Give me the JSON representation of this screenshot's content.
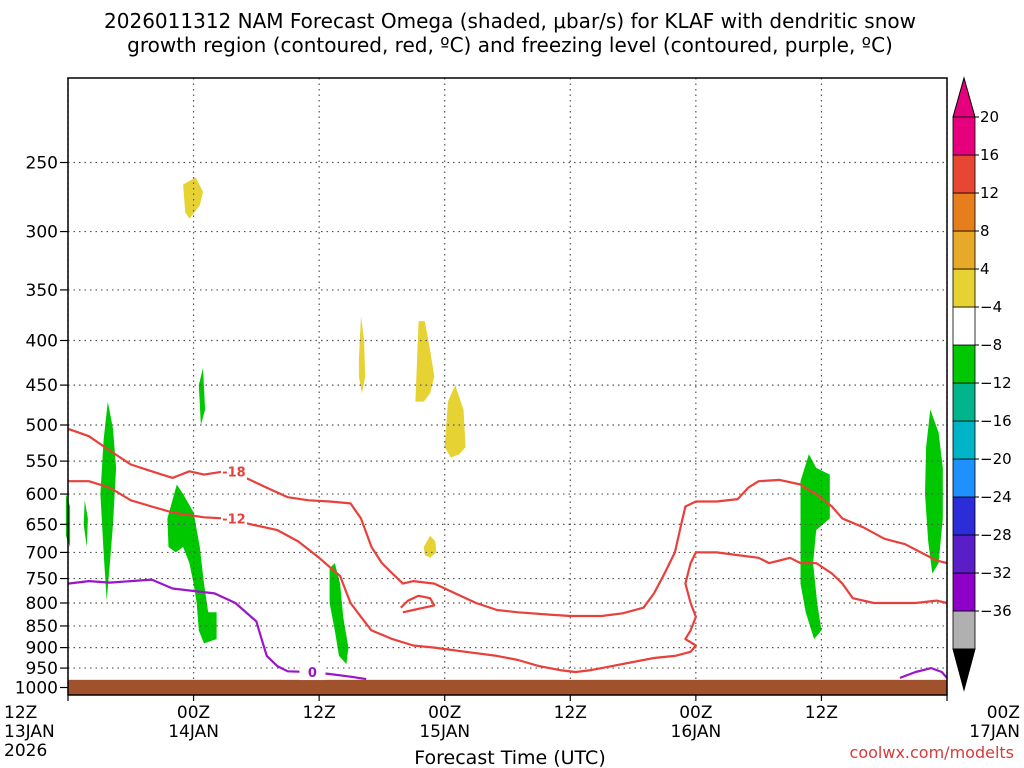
{
  "chart_data": {
    "type": "heatmap",
    "title_line1": "2026011312 NAM Forecast Omega (shaded, μbar/s) for KLAF with dendritic snow",
    "title_line2": "growth region (contoured, red, ºC) and freezing level (contoured, purple, ºC)",
    "xlabel": "Forecast Time (UTC)",
    "credit": "coolwx.com/modelts",
    "x_range_hours": [
      0,
      84
    ],
    "y_range_hpa": [
      200,
      1020
    ],
    "y_scale": "log",
    "grid": "dotted",
    "x_ticks": [
      {
        "h": 0,
        "line1": "12Z",
        "line2": "13JAN",
        "line3": "2026"
      },
      {
        "h": 12,
        "line1": "00Z",
        "line2": "14JAN",
        "line3": ""
      },
      {
        "h": 24,
        "line1": "12Z",
        "line2": "",
        "line3": ""
      },
      {
        "h": 36,
        "line1": "00Z",
        "line2": "15JAN",
        "line3": ""
      },
      {
        "h": 48,
        "line1": "12Z",
        "line2": "",
        "line3": ""
      },
      {
        "h": 60,
        "line1": "00Z",
        "line2": "16JAN",
        "line3": ""
      },
      {
        "h": 72,
        "line1": "12Z",
        "line2": "",
        "line3": ""
      },
      {
        "h": 84,
        "line1": "00Z",
        "line2": "17JAN",
        "line3": ""
      }
    ],
    "y_ticks": [
      250,
      300,
      350,
      400,
      450,
      500,
      550,
      600,
      650,
      700,
      750,
      800,
      850,
      900,
      950,
      1000
    ],
    "y_tick_labels": [
      "250",
      "300",
      "350",
      "400",
      "450",
      "500",
      "550",
      "600",
      "650",
      "700",
      "750",
      "800",
      "850",
      "900",
      "950",
      "1000"
    ],
    "surface_hpa": 980,
    "surface_color": "#a0522d",
    "colorbar": {
      "colors": [
        "#b0b0b0",
        "#8c00c8",
        "#5a1ec8",
        "#2c2cd8",
        "#1e90ff",
        "#00b4c8",
        "#00b48c",
        "#00c800",
        "#ffffff",
        "#e6d232",
        "#e6aa28",
        "#e67e1e",
        "#e64632",
        "#e6007e"
      ],
      "labels": [
        "20",
        "16",
        "12",
        "8",
        "4",
        "−4",
        "−8",
        "−12",
        "−16",
        "−20",
        "−24",
        "−28",
        "−32",
        "−36"
      ],
      "under_color": "#000000",
      "over_color": "#e6007e"
    },
    "omega_regions": [
      {
        "color": "#00c800",
        "points": [
          [
            3.4,
            520
          ],
          [
            3.8,
            470
          ],
          [
            4.3,
            505
          ],
          [
            4.6,
            560
          ],
          [
            4.3,
            650
          ],
          [
            4.0,
            720
          ],
          [
            3.7,
            795
          ],
          [
            3.4,
            700
          ],
          [
            3.1,
            600
          ]
        ]
      },
      {
        "color": "#00c800",
        "points": [
          [
            1.6,
            610
          ],
          [
            1.9,
            640
          ],
          [
            1.8,
            690
          ],
          [
            1.5,
            650
          ]
        ]
      },
      {
        "color": "#00c800",
        "points": [
          [
            -0.2,
            600
          ],
          [
            0.2,
            620
          ],
          [
            0.2,
            690
          ],
          [
            -0.2,
            670
          ]
        ]
      },
      {
        "color": "#00c800",
        "points": [
          [
            9.5,
            640
          ],
          [
            10.4,
            585
          ],
          [
            11.0,
            600
          ],
          [
            12.0,
            630
          ],
          [
            12.6,
            690
          ],
          [
            13.0,
            760
          ],
          [
            13.4,
            820
          ],
          [
            14.2,
            820
          ],
          [
            14.2,
            880
          ],
          [
            13.0,
            890
          ],
          [
            12.5,
            860
          ],
          [
            12.3,
            800
          ],
          [
            12.0,
            760
          ],
          [
            11.6,
            720
          ],
          [
            11.0,
            690
          ],
          [
            10.3,
            700
          ],
          [
            9.6,
            690
          ]
        ]
      },
      {
        "color": "#00c800",
        "points": [
          [
            12.5,
            450
          ],
          [
            12.9,
            430
          ],
          [
            13.1,
            480
          ],
          [
            12.7,
            500
          ]
        ]
      },
      {
        "color": "#00c800",
        "points": [
          [
            25.0,
            730
          ],
          [
            25.5,
            720
          ],
          [
            26.0,
            760
          ],
          [
            26.3,
            830
          ],
          [
            26.8,
            900
          ],
          [
            26.6,
            940
          ],
          [
            25.9,
            920
          ],
          [
            25.5,
            860
          ],
          [
            25.0,
            800
          ]
        ]
      },
      {
        "color": "#00c800",
        "points": [
          [
            70.0,
            580
          ],
          [
            70.8,
            540
          ],
          [
            71.5,
            560
          ],
          [
            72.8,
            570
          ],
          [
            72.8,
            640
          ],
          [
            71.5,
            660
          ],
          [
            71.2,
            720
          ],
          [
            71.6,
            800
          ],
          [
            72.0,
            860
          ],
          [
            71.3,
            880
          ],
          [
            70.5,
            820
          ],
          [
            70.0,
            760
          ]
        ]
      },
      {
        "color": "#00c800",
        "points": [
          [
            82.0,
            530
          ],
          [
            82.4,
            480
          ],
          [
            83.2,
            510
          ],
          [
            83.6,
            560
          ],
          [
            83.6,
            640
          ],
          [
            83.2,
            720
          ],
          [
            82.6,
            740
          ],
          [
            82.2,
            680
          ],
          [
            81.9,
            600
          ]
        ]
      },
      {
        "color": "#e6d232",
        "points": [
          [
            11.0,
            265
          ],
          [
            12.2,
            260
          ],
          [
            12.9,
            270
          ],
          [
            12.6,
            280
          ],
          [
            11.6,
            290
          ],
          [
            11.2,
            285
          ]
        ]
      },
      {
        "color": "#e6d232",
        "points": [
          [
            27.8,
            420
          ],
          [
            28.0,
            375
          ],
          [
            28.3,
            400
          ],
          [
            28.4,
            440
          ],
          [
            28.1,
            460
          ],
          [
            27.8,
            440
          ]
        ]
      },
      {
        "color": "#e6d232",
        "points": [
          [
            33.2,
            470
          ],
          [
            33.5,
            380
          ],
          [
            34.1,
            380
          ],
          [
            34.6,
            410
          ],
          [
            35.0,
            440
          ],
          [
            34.6,
            460
          ],
          [
            34.0,
            470
          ]
        ]
      },
      {
        "color": "#e6d232",
        "points": [
          [
            36.0,
            530
          ],
          [
            36.3,
            470
          ],
          [
            37.0,
            450
          ],
          [
            37.8,
            480
          ],
          [
            38.0,
            530
          ],
          [
            37.4,
            540
          ],
          [
            36.6,
            545
          ]
        ]
      },
      {
        "color": "#e6d232",
        "points": [
          [
            34.0,
            690
          ],
          [
            34.6,
            670
          ],
          [
            35.1,
            680
          ],
          [
            35.2,
            700
          ],
          [
            34.6,
            710
          ],
          [
            34.1,
            705
          ]
        ]
      }
    ],
    "dgz_contours": [
      {
        "label": "-18",
        "label_at": [
          15.0,
          565
        ],
        "points": [
          [
            0,
            505
          ],
          [
            2,
            515
          ],
          [
            4,
            535
          ],
          [
            6,
            555
          ],
          [
            8,
            565
          ],
          [
            10,
            575
          ],
          [
            11.6,
            565
          ],
          [
            13,
            570
          ],
          [
            15,
            565
          ],
          [
            17,
            575
          ],
          [
            19,
            590
          ],
          [
            21,
            605
          ],
          [
            23,
            610
          ],
          [
            25,
            612
          ],
          [
            27,
            615
          ],
          [
            28,
            640
          ],
          [
            29,
            690
          ],
          [
            30,
            720
          ],
          [
            31,
            740
          ],
          [
            32,
            760
          ],
          [
            33,
            755
          ],
          [
            35,
            760
          ],
          [
            37,
            780
          ],
          [
            39,
            800
          ],
          [
            41,
            815
          ],
          [
            43,
            820
          ],
          [
            46,
            825
          ],
          [
            48,
            828
          ],
          [
            51,
            828
          ],
          [
            53,
            822
          ],
          [
            55,
            810
          ],
          [
            56,
            780
          ],
          [
            57,
            740
          ],
          [
            58,
            700
          ],
          [
            58.6,
            650
          ],
          [
            59,
            620
          ],
          [
            60,
            612
          ],
          [
            62,
            612
          ],
          [
            64,
            608
          ],
          [
            65,
            590
          ],
          [
            66,
            580
          ],
          [
            68,
            578
          ],
          [
            70,
            585
          ],
          [
            70.4,
            590
          ],
          [
            71.5,
            600
          ],
          [
            73,
            620
          ],
          [
            74,
            640
          ],
          [
            76,
            655
          ],
          [
            78,
            675
          ],
          [
            80,
            685
          ],
          [
            82,
            705
          ],
          [
            83,
            715
          ],
          [
            84,
            720
          ]
        ]
      },
      {
        "label": "-12",
        "label_at": [
          15.0,
          640
        ],
        "points": [
          [
            0,
            580
          ],
          [
            2,
            580
          ],
          [
            4,
            590
          ],
          [
            6,
            610
          ],
          [
            8,
            620
          ],
          [
            10,
            630
          ],
          [
            13,
            638
          ],
          [
            15,
            640
          ],
          [
            17,
            648
          ],
          [
            20,
            660
          ],
          [
            22,
            680
          ],
          [
            24,
            710
          ],
          [
            26,
            745
          ],
          [
            27,
            800
          ],
          [
            28,
            830
          ],
          [
            29,
            860
          ],
          [
            31,
            880
          ],
          [
            33,
            895
          ],
          [
            35,
            900
          ],
          [
            38,
            910
          ],
          [
            41,
            920
          ],
          [
            43,
            930
          ],
          [
            45,
            945
          ],
          [
            47,
            955
          ],
          [
            48.5,
            960
          ],
          [
            50,
            955
          ],
          [
            52,
            945
          ],
          [
            54,
            935
          ],
          [
            56,
            925
          ],
          [
            58,
            920
          ],
          [
            59.5,
            910
          ],
          [
            60,
            895
          ],
          [
            59,
            880
          ],
          [
            59.5,
            860
          ],
          [
            60,
            830
          ],
          [
            59.5,
            800
          ],
          [
            59,
            760
          ],
          [
            59.5,
            720
          ],
          [
            60,
            700
          ],
          [
            62,
            700
          ],
          [
            64,
            705
          ],
          [
            66,
            710
          ],
          [
            67,
            720
          ],
          [
            68,
            715
          ],
          [
            69,
            710
          ],
          [
            70,
            720
          ],
          [
            71.5,
            720
          ],
          [
            73,
            740
          ],
          [
            74,
            760
          ],
          [
            75,
            790
          ],
          [
            77,
            800
          ],
          [
            79,
            800
          ],
          [
            81,
            800
          ],
          [
            83,
            795
          ],
          [
            84,
            800
          ]
        ]
      },
      {
        "label": "",
        "label_at": [
          0,
          0
        ],
        "points": [
          [
            32,
            820
          ],
          [
            33,
            815
          ],
          [
            34,
            810
          ],
          [
            35,
            805
          ],
          [
            34.6,
            790
          ],
          [
            33.5,
            785
          ],
          [
            32.5,
            795
          ],
          [
            31.8,
            810
          ]
        ]
      }
    ],
    "freezing_contours": [
      {
        "label": "0",
        "label_at": [
          22.5,
          960
        ],
        "points": [
          [
            0,
            760
          ],
          [
            2,
            755
          ],
          [
            4,
            758
          ],
          [
            6,
            755
          ],
          [
            8,
            752
          ],
          [
            10,
            770
          ],
          [
            12,
            775
          ],
          [
            14,
            780
          ],
          [
            16,
            800
          ],
          [
            18,
            840
          ],
          [
            18.5,
            880
          ],
          [
            19,
            920
          ],
          [
            20,
            945
          ],
          [
            21,
            958
          ],
          [
            23,
            960
          ],
          [
            25,
            965
          ],
          [
            27,
            972
          ],
          [
            28.5,
            978
          ]
        ]
      },
      {
        "label": "",
        "label_at": [
          0,
          0
        ],
        "points": [
          [
            79.5,
            975
          ],
          [
            81,
            960
          ],
          [
            82.5,
            950
          ],
          [
            83.5,
            960
          ],
          [
            84,
            975
          ]
        ]
      }
    ]
  }
}
